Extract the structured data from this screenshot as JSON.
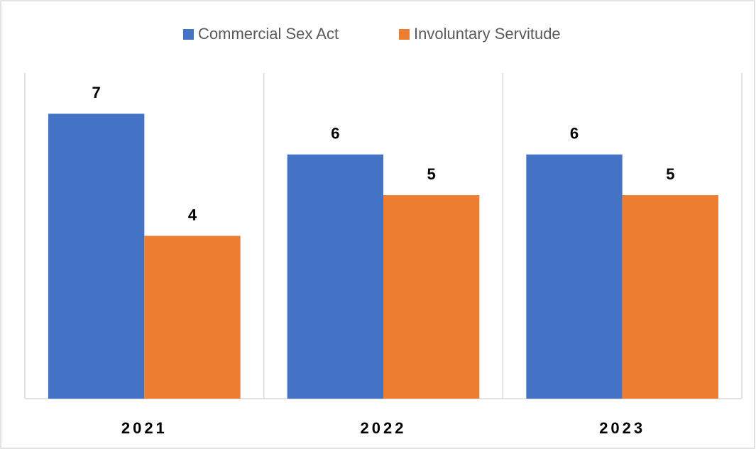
{
  "chart_data": {
    "type": "bar",
    "categories": [
      "2021",
      "2022",
      "2023"
    ],
    "series": [
      {
        "name": "Commercial Sex Act",
        "color": "#4472c4",
        "values": [
          7,
          6,
          6
        ]
      },
      {
        "name": "Involuntary Servitude",
        "color": "#ed7d31",
        "values": [
          4,
          5,
          5
        ]
      }
    ],
    "ylim": [
      0,
      8
    ],
    "legend": "top"
  }
}
